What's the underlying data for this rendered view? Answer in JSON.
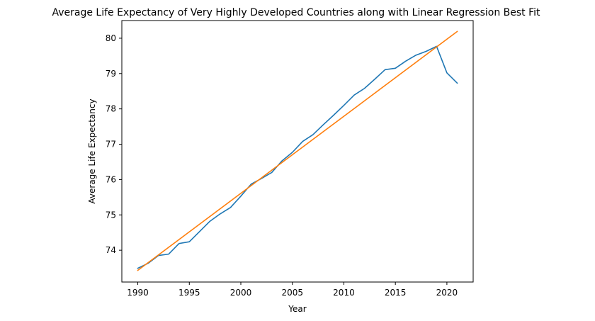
{
  "chart_data": {
    "type": "line",
    "title": "Average Life Expectancy of Very Highly Developed Countries along with Linear Regression Best Fit",
    "xlabel": "Year",
    "ylabel": "Average Life Expectancy",
    "xlim": [
      1988.45,
      2022.55
    ],
    "ylim": [
      73.1,
      80.5
    ],
    "grid": false,
    "xticks": [
      1990,
      1995,
      2000,
      2005,
      2010,
      2015,
      2020
    ],
    "yticks": [
      74,
      75,
      76,
      77,
      78,
      79,
      80
    ],
    "series": [
      {
        "color": "#1f77b4",
        "x": [
          1990,
          1991,
          1992,
          1993,
          1994,
          1995,
          1996,
          1997,
          1998,
          1999,
          2000,
          2001,
          2002,
          2003,
          2004,
          2005,
          2006,
          2007,
          2008,
          2009,
          2010,
          2011,
          2012,
          2013,
          2014,
          2015,
          2016,
          2017,
          2018,
          2019,
          2020,
          2021
        ],
        "y": [
          73.49,
          73.63,
          73.85,
          73.89,
          74.19,
          74.24,
          74.53,
          74.82,
          75.03,
          75.21,
          75.53,
          75.87,
          76.03,
          76.2,
          76.53,
          76.77,
          77.08,
          77.27,
          77.55,
          77.82,
          78.1,
          78.39,
          78.58,
          78.84,
          79.11,
          79.15,
          79.35,
          79.52,
          79.63,
          79.77,
          79.02,
          78.73
        ]
      },
      {
        "color": "#ff7f0e",
        "x": [
          1990,
          2021
        ],
        "y": [
          73.43,
          80.19
        ]
      }
    ]
  }
}
